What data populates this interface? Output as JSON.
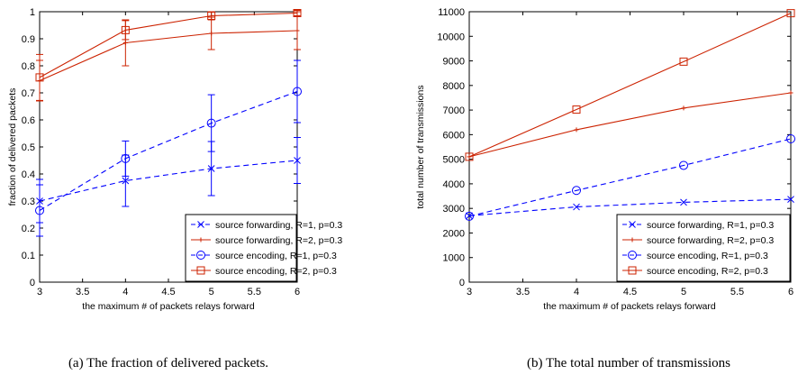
{
  "chart_data": [
    {
      "type": "line",
      "caption": "(a) The fraction of delivered packets.",
      "xlabel": "the maximum # of packets relays forward",
      "ylabel": "fraction of delivered packets",
      "xlim": [
        3,
        6
      ],
      "ylim": [
        0,
        1
      ],
      "xticks": [
        3,
        3.5,
        4,
        4.5,
        5,
        5.5,
        6
      ],
      "yticks": [
        0,
        0.1,
        0.2,
        0.3,
        0.4,
        0.5,
        0.6,
        0.7,
        0.8,
        0.9,
        1
      ],
      "grid": false,
      "legend_position": "bottom-right",
      "x": [
        3,
        4,
        5,
        6
      ],
      "series": [
        {
          "name": "source forwarding, R=1, p=0.3",
          "color": "#0000ff",
          "dash": true,
          "marker": "x",
          "values": [
            0.3,
            0.375,
            0.42,
            0.45
          ],
          "err": [
            0.08,
            0.095,
            0.1,
            0.085
          ]
        },
        {
          "name": "source forwarding, R=2, p=0.3",
          "color": "#cc2200",
          "dash": false,
          "marker": "dot",
          "values": [
            0.745,
            0.885,
            0.92,
            0.93
          ],
          "err": [
            0.075,
            0.085,
            0.06,
            0.07
          ]
        },
        {
          "name": "source encoding, R=1, p=0.3",
          "color": "#0000ff",
          "dash": true,
          "marker": "circle",
          "values": [
            0.265,
            0.457,
            0.588,
            0.705
          ],
          "err": [
            0.095,
            0.065,
            0.105,
            0.115
          ]
        },
        {
          "name": "source encoding, R=2, p=0.3",
          "color": "#cc2200",
          "dash": false,
          "marker": "square",
          "values": [
            0.757,
            0.932,
            0.985,
            0.995
          ],
          "err": [
            0.085,
            0.035,
            0.015,
            0.01
          ]
        }
      ]
    },
    {
      "type": "line",
      "caption": "(b) The total number of transmissions",
      "xlabel": "the maximum # of packets relays forward",
      "ylabel": "total number of transmissions",
      "xlim": [
        3,
        6
      ],
      "ylim": [
        0,
        11000
      ],
      "xticks": [
        3,
        3.5,
        4,
        4.5,
        5,
        5.5,
        6
      ],
      "yticks": [
        0,
        1000,
        2000,
        3000,
        4000,
        5000,
        6000,
        7000,
        8000,
        9000,
        10000,
        11000
      ],
      "grid": false,
      "legend_position": "bottom-right",
      "x": [
        3,
        4,
        5,
        6
      ],
      "series": [
        {
          "name": "source forwarding, R=1, p=0.3",
          "color": "#0000ff",
          "dash": true,
          "marker": "x",
          "values": [
            2700,
            3060,
            3250,
            3370
          ]
        },
        {
          "name": "source forwarding, R=2, p=0.3",
          "color": "#cc2200",
          "dash": false,
          "marker": "dot",
          "values": [
            5100,
            6200,
            7080,
            7700
          ]
        },
        {
          "name": "source encoding, R=1, p=0.3",
          "color": "#0000ff",
          "dash": true,
          "marker": "circle",
          "values": [
            2680,
            3730,
            4750,
            5830
          ]
        },
        {
          "name": "source encoding, R=2, p=0.3",
          "color": "#cc2200",
          "dash": false,
          "marker": "square",
          "values": [
            5100,
            7020,
            8970,
            10940
          ]
        }
      ]
    }
  ]
}
